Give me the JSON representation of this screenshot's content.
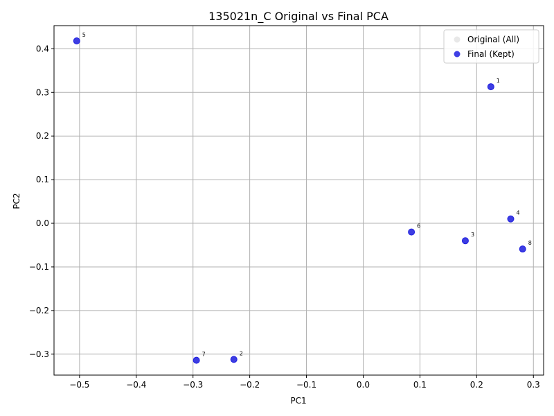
{
  "chart_data": {
    "type": "scatter",
    "title": "135021n_C Original vs Final PCA",
    "xlabel": "PC1",
    "ylabel": "PC2",
    "xlim": [
      -0.545,
      0.318
    ],
    "ylim": [
      -0.348,
      0.453
    ],
    "xticks": [
      -0.5,
      -0.4,
      -0.3,
      -0.2,
      -0.1,
      0.0,
      0.1,
      0.2,
      0.3
    ],
    "xtick_labels": [
      "−0.5",
      "−0.4",
      "−0.3",
      "−0.2",
      "−0.1",
      "0.0",
      "0.1",
      "0.2",
      "0.3"
    ],
    "yticks": [
      -0.3,
      -0.2,
      -0.1,
      0.0,
      0.1,
      0.2,
      0.3,
      0.4
    ],
    "ytick_labels": [
      "−0.3",
      "−0.2",
      "−0.1",
      "0.0",
      "0.1",
      "0.2",
      "0.3",
      "0.4"
    ],
    "grid": true,
    "legend_position": "top-right",
    "series": [
      {
        "name": "Original (All)",
        "color": "#d9d9d9",
        "points": [
          {
            "label": "1",
            "x": 0.225,
            "y": 0.313
          },
          {
            "label": "2",
            "x": -0.228,
            "y": -0.312
          },
          {
            "label": "3",
            "x": 0.18,
            "y": -0.04
          },
          {
            "label": "4",
            "x": 0.26,
            "y": 0.01
          },
          {
            "label": "5",
            "x": -0.505,
            "y": 0.418
          },
          {
            "label": "6",
            "x": 0.085,
            "y": -0.02
          },
          {
            "label": "7",
            "x": -0.294,
            "y": -0.314
          },
          {
            "label": "8",
            "x": 0.281,
            "y": -0.059
          }
        ]
      },
      {
        "name": "Final (Kept)",
        "color": "#1f1fe0",
        "points": [
          {
            "label": "1",
            "x": 0.225,
            "y": 0.313
          },
          {
            "label": "2",
            "x": -0.228,
            "y": -0.312
          },
          {
            "label": "3",
            "x": 0.18,
            "y": -0.04
          },
          {
            "label": "4",
            "x": 0.26,
            "y": 0.01
          },
          {
            "label": "5",
            "x": -0.505,
            "y": 0.418
          },
          {
            "label": "6",
            "x": 0.085,
            "y": -0.02
          },
          {
            "label": "7",
            "x": -0.294,
            "y": -0.314
          },
          {
            "label": "8",
            "x": 0.281,
            "y": -0.059
          }
        ]
      }
    ]
  }
}
